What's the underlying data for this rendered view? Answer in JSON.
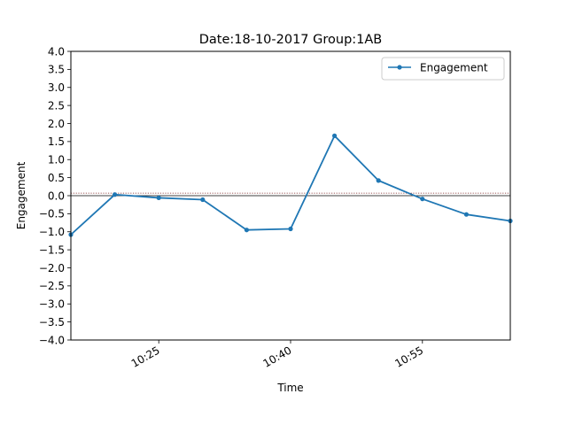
{
  "chart_data": {
    "type": "line",
    "title": "Date:18-10-2017 Group:1AB",
    "xlabel": "Time",
    "ylabel": "Engagement",
    "ylim": [
      -4.0,
      4.0
    ],
    "y_ticks": [
      -4.0,
      -3.5,
      -3.0,
      -2.5,
      -2.0,
      -1.5,
      -1.0,
      -0.5,
      0.0,
      0.5,
      1.0,
      1.5,
      2.0,
      2.5,
      3.0,
      3.5,
      4.0
    ],
    "y_tick_labels": [
      "−4.0",
      "−3.5",
      "−3.0",
      "−2.5",
      "−2.0",
      "−1.5",
      "−1.0",
      "−0.5",
      "0.0",
      "0.5",
      "1.0",
      "1.5",
      "2.0",
      "2.5",
      "3.0",
      "3.5",
      "4.0"
    ],
    "xlim": [
      "10:15",
      "11:05"
    ],
    "x_ticks": [
      "10:25",
      "10:40",
      "10:55"
    ],
    "x": [
      "10:15",
      "10:20",
      "10:25",
      "10:30",
      "10:35",
      "10:40",
      "10:45",
      "10:50",
      "10:55",
      "11:00",
      "11:05"
    ],
    "series": [
      {
        "name": "Engagement",
        "color": "#1f77b4",
        "values": [
          -1.08,
          0.03,
          -0.06,
          -0.11,
          -0.95,
          -0.92,
          1.66,
          0.42,
          -0.09,
          -0.52,
          -0.7
        ]
      }
    ],
    "reference_lines": [
      {
        "y": 0.0,
        "style": "solid",
        "color": "#000000"
      },
      {
        "y": 0.07,
        "style": "dotted",
        "color": "#7a1f1f"
      }
    ],
    "grid": false,
    "legend_position": "top-right"
  }
}
